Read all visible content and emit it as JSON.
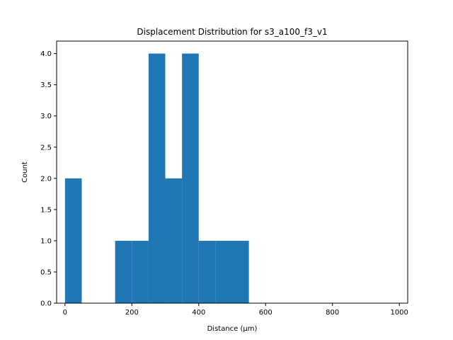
{
  "chart_data": {
    "type": "bar",
    "title": "Displacement Distribution for s3_a100_f3_v1",
    "xlabel": "Distance (µm)",
    "ylabel": "Count",
    "xlim": [
      -25,
      1025
    ],
    "ylim": [
      0,
      4.2
    ],
    "bin_width": 50,
    "bins": [
      {
        "x0": 0,
        "x1": 50,
        "count": 2
      },
      {
        "x0": 50,
        "x1": 100,
        "count": 0
      },
      {
        "x0": 100,
        "x1": 150,
        "count": 0
      },
      {
        "x0": 150,
        "x1": 200,
        "count": 1
      },
      {
        "x0": 200,
        "x1": 250,
        "count": 1
      },
      {
        "x0": 250,
        "x1": 300,
        "count": 4
      },
      {
        "x0": 300,
        "x1": 350,
        "count": 2
      },
      {
        "x0": 350,
        "x1": 400,
        "count": 4
      },
      {
        "x0": 400,
        "x1": 450,
        "count": 1
      },
      {
        "x0": 450,
        "x1": 500,
        "count": 1
      },
      {
        "x0": 500,
        "x1": 550,
        "count": 1
      },
      {
        "x0": 550,
        "x1": 600,
        "count": 0
      },
      {
        "x0": 600,
        "x1": 650,
        "count": 0
      },
      {
        "x0": 650,
        "x1": 700,
        "count": 0
      },
      {
        "x0": 700,
        "x1": 750,
        "count": 0
      },
      {
        "x0": 750,
        "x1": 800,
        "count": 0
      },
      {
        "x0": 800,
        "x1": 850,
        "count": 0
      },
      {
        "x0": 850,
        "x1": 900,
        "count": 0
      },
      {
        "x0": 900,
        "x1": 950,
        "count": 0
      },
      {
        "x0": 950,
        "x1": 1000,
        "count": 0
      }
    ],
    "x_ticks": [
      0,
      200,
      400,
      600,
      800,
      1000
    ],
    "x_tick_labels": [
      "0",
      "200",
      "400",
      "600",
      "800",
      "1000"
    ],
    "y_ticks": [
      0,
      0.5,
      1.0,
      1.5,
      2.0,
      2.5,
      3.0,
      3.5,
      4.0
    ],
    "y_tick_labels": [
      "0.0",
      "0.5",
      "1.0",
      "1.5",
      "2.0",
      "2.5",
      "3.0",
      "3.5",
      "4.0"
    ],
    "grid": false,
    "legend": "none",
    "bar_color": "#1f77b4"
  }
}
